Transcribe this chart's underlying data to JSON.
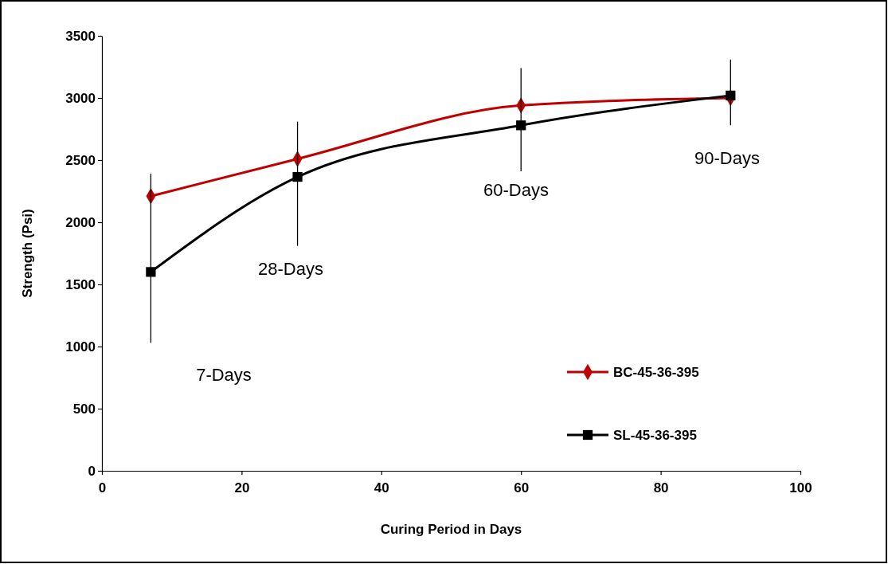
{
  "chart_data": {
    "type": "line",
    "xlabel": "Curing Period in Days",
    "ylabel": "Strength (Psi)",
    "xlim": [
      0,
      100
    ],
    "xticks": [
      0,
      20,
      40,
      60,
      80,
      100
    ],
    "ylim": [
      0,
      3500
    ],
    "yticks": [
      0,
      500,
      1000,
      1500,
      2000,
      2500,
      3000,
      3500
    ],
    "grid": false,
    "legend": "bottom right",
    "line_style": "solid",
    "x": [
      7,
      28,
      60,
      90
    ],
    "series": [
      {
        "name": "BC-45-36-395",
        "color": "#c00000",
        "marker": "diamond",
        "values": [
          2210,
          2510,
          2940,
          3000
        ]
      },
      {
        "name": "SL-45-36-395",
        "color": "#000000",
        "marker": "square",
        "values": [
          1600,
          2365,
          2780,
          3020
        ],
        "errors": [
          [
            1030,
            2390
          ],
          [
            1810,
            2810
          ],
          [
            2410,
            3240
          ],
          [
            2780,
            3310
          ]
        ]
      }
    ],
    "annotations": [
      "7-Days",
      "28-Days",
      "60-Days",
      "90-Days"
    ]
  }
}
